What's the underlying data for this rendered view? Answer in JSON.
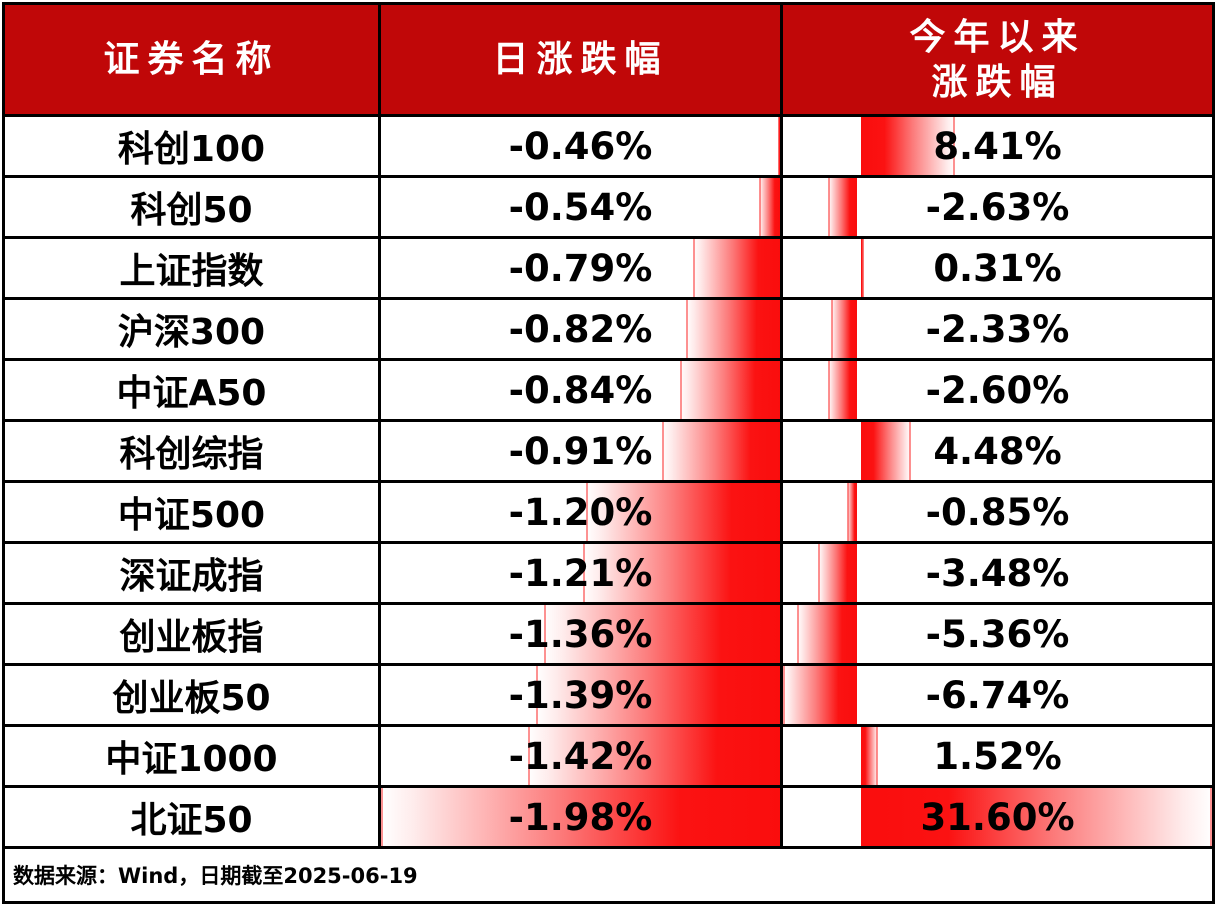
{
  "header": {
    "security": "证券名称",
    "daily": "日涨跌幅",
    "ytd_line1": "今年以来",
    "ytd_line2": "涨跌幅"
  },
  "rows": [
    {
      "name": "科创100",
      "daily_text": "-0.46%",
      "ytd_text": "8.41%",
      "daily": -0.46,
      "ytd": 8.41
    },
    {
      "name": "科创50",
      "daily_text": "-0.54%",
      "ytd_text": "-2.63%",
      "daily": -0.54,
      "ytd": -2.63
    },
    {
      "name": "上证指数",
      "daily_text": "-0.79%",
      "ytd_text": "0.31%",
      "daily": -0.79,
      "ytd": 0.31
    },
    {
      "name": "沪深300",
      "daily_text": "-0.82%",
      "ytd_text": "-2.33%",
      "daily": -0.82,
      "ytd": -2.33
    },
    {
      "name": "中证A50",
      "daily_text": "-0.84%",
      "ytd_text": "-2.60%",
      "daily": -0.84,
      "ytd": -2.6
    },
    {
      "name": "科创综指",
      "daily_text": "-0.91%",
      "ytd_text": "4.48%",
      "daily": -0.91,
      "ytd": 4.48
    },
    {
      "name": "中证500",
      "daily_text": "-1.20%",
      "ytd_text": "-0.85%",
      "daily": -1.2,
      "ytd": -0.85
    },
    {
      "name": "深证成指",
      "daily_text": "-1.21%",
      "ytd_text": "-3.48%",
      "daily": -1.21,
      "ytd": -3.48
    },
    {
      "name": "创业板指",
      "daily_text": "-1.36%",
      "ytd_text": "-5.36%",
      "daily": -1.36,
      "ytd": -5.36
    },
    {
      "name": "创业板50",
      "daily_text": "-1.39%",
      "ytd_text": "-6.74%",
      "daily": -1.39,
      "ytd": -6.74
    },
    {
      "name": "中证1000",
      "daily_text": "-1.42%",
      "ytd_text": "1.52%",
      "daily": -1.42,
      "ytd": 1.52
    },
    {
      "name": "北证50",
      "daily_text": "-1.98%",
      "ytd_text": "31.60%",
      "daily": -1.98,
      "ytd": 31.6
    }
  ],
  "footer": {
    "source": "数据来源：Wind，日期截至2025-06-19"
  },
  "colors": {
    "header_bg": "#c00708",
    "header_text": "#ffffff",
    "bar_red": "#fa0d0d",
    "grid_line": "#000000",
    "value_text": "#000000"
  },
  "chart_data": {
    "type": "table",
    "title": "",
    "categories": [
      "科创100",
      "科创50",
      "上证指数",
      "沪深300",
      "中证A50",
      "科创综指",
      "中证500",
      "深证成指",
      "创业板指",
      "创业板50",
      "中证1000",
      "北证50"
    ],
    "series": [
      {
        "name": "日涨跌幅",
        "unit": "%",
        "values": [
          -0.46,
          -0.54,
          -0.79,
          -0.82,
          -0.84,
          -0.91,
          -1.2,
          -1.21,
          -1.36,
          -1.39,
          -1.42,
          -1.98
        ],
        "bar_style": "gradient-red-databar",
        "bar_anchor": "right-edge",
        "bar_range_abs": [
          0.46,
          1.98
        ]
      },
      {
        "name": "今年以来涨跌幅",
        "unit": "%",
        "values": [
          8.41,
          -2.63,
          0.31,
          -2.33,
          -2.6,
          4.48,
          -0.85,
          -3.48,
          -5.36,
          -6.74,
          1.52,
          31.6
        ],
        "bar_style": "gradient-red-databar",
        "bar_axis": "proportional",
        "bar_range": [
          -6.74,
          31.6
        ]
      }
    ],
    "legend": "none",
    "source_note": "数据来源：Wind，日期截至2025-06-19"
  }
}
